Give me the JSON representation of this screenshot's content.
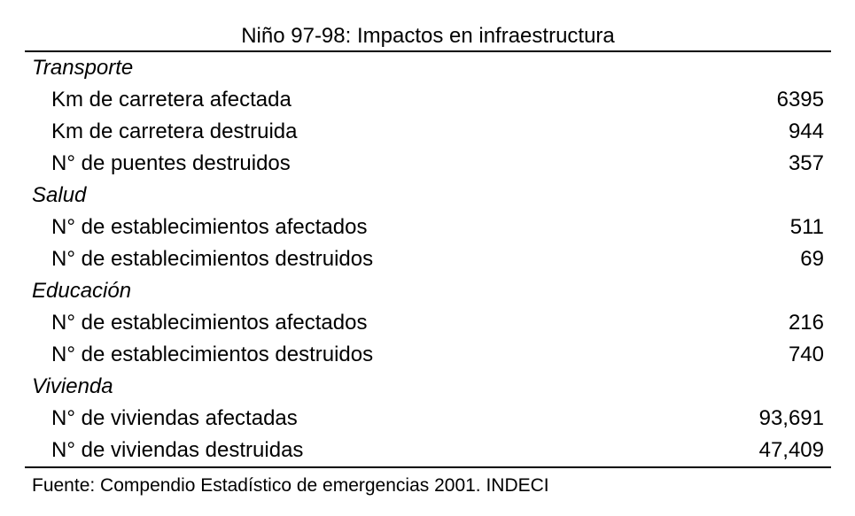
{
  "title": "Niño 97-98: Impactos en infraestructura",
  "sections": [
    {
      "category": "Transporte",
      "rows": [
        {
          "label": "Km de carretera afectada",
          "value": "6395"
        },
        {
          "label": "Km de carretera destruida",
          "value": "944"
        },
        {
          "label": "N° de puentes destruidos",
          "value": "357"
        }
      ]
    },
    {
      "category": "Salud",
      "rows": [
        {
          "label": "N° de establecimientos afectados",
          "value": "511"
        },
        {
          "label": "N° de establecimientos destruidos",
          "value": "69"
        }
      ]
    },
    {
      "category": "Educación",
      "rows": [
        {
          "label": "N° de establecimientos afectados",
          "value": "216"
        },
        {
          "label": "N° de establecimientos destruidos",
          "value": "740"
        }
      ]
    },
    {
      "category": "Vivienda",
      "rows": [
        {
          "label": "N° de viviendas afectadas",
          "value": "93,691"
        },
        {
          "label": "N° de viviendas destruidas",
          "value": "47,409"
        }
      ]
    }
  ],
  "source": "Fuente: Compendio Estadístico de emergencias 2001. INDECI"
}
